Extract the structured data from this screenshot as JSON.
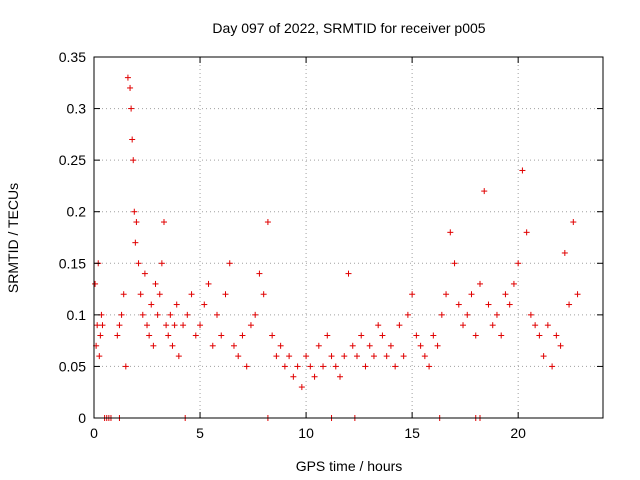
{
  "chart_data": {
    "type": "scatter",
    "title": "Day 097 of 2022, SRMTID for receiver p005",
    "xlabel": "GPS time / hours",
    "ylabel": "SRMTID / TECUs",
    "xlim": [
      0,
      24
    ],
    "ylim": [
      0,
      0.35
    ],
    "x_ticks": [
      0,
      5,
      10,
      15,
      20
    ],
    "x_tick_labels": [
      "0",
      "5",
      "10",
      "15",
      "20"
    ],
    "y_ticks": [
      0,
      0.05,
      0.1,
      0.15,
      0.2,
      0.25,
      0.3,
      0.35
    ],
    "y_tick_labels": [
      "0",
      "0.05",
      "0.1",
      "0.15",
      "0.2",
      "0.25",
      "0.3",
      "0.35"
    ],
    "grid": true,
    "marker": "plus",
    "color": "#e00000",
    "series": [
      {
        "name": "p005",
        "x": [
          0.05,
          0.1,
          0.15,
          0.2,
          0.25,
          0.3,
          0.35,
          0.4,
          1.1,
          1.2,
          1.3,
          1.4,
          1.5,
          1.6,
          1.7,
          1.75,
          1.8,
          1.85,
          1.9,
          1.95,
          2.0,
          2.1,
          2.2,
          2.3,
          2.4,
          2.5,
          2.6,
          2.7,
          2.8,
          2.9,
          3.0,
          3.1,
          3.2,
          3.3,
          3.4,
          3.5,
          3.6,
          3.7,
          3.8,
          3.9,
          4.0,
          4.2,
          4.4,
          4.6,
          4.8,
          5.0,
          5.2,
          5.4,
          5.6,
          5.8,
          6.0,
          6.2,
          6.4,
          6.6,
          6.8,
          7.0,
          7.2,
          7.4,
          7.6,
          7.8,
          8.0,
          8.2,
          8.4,
          8.6,
          8.8,
          9.0,
          9.2,
          9.4,
          9.6,
          9.8,
          10.0,
          10.2,
          10.4,
          10.6,
          10.8,
          11.0,
          11.2,
          11.4,
          11.6,
          11.8,
          12.0,
          12.2,
          12.4,
          12.6,
          12.8,
          13.0,
          13.2,
          13.4,
          13.6,
          13.8,
          14.0,
          14.2,
          14.4,
          14.6,
          14.8,
          15.0,
          15.2,
          15.4,
          15.6,
          15.8,
          16.0,
          16.2,
          16.4,
          16.6,
          16.8,
          17.0,
          17.2,
          17.4,
          17.6,
          17.8,
          18.0,
          18.2,
          18.4,
          18.6,
          18.8,
          19.0,
          19.2,
          19.4,
          19.6,
          19.8,
          20.0,
          20.2,
          20.4,
          20.6,
          20.8,
          21.0,
          21.2,
          21.4,
          21.6,
          21.8,
          22.0,
          22.2,
          22.4,
          22.6,
          22.8
        ],
        "y": [
          0.13,
          0.07,
          0.09,
          0.15,
          0.06,
          0.08,
          0.1,
          0.09,
          0.08,
          0.09,
          0.1,
          0.12,
          0.05,
          0.33,
          0.32,
          0.3,
          0.27,
          0.25,
          0.2,
          0.17,
          0.19,
          0.15,
          0.12,
          0.1,
          0.14,
          0.09,
          0.08,
          0.11,
          0.07,
          0.13,
          0.1,
          0.12,
          0.15,
          0.19,
          0.09,
          0.08,
          0.1,
          0.07,
          0.09,
          0.11,
          0.06,
          0.09,
          0.1,
          0.12,
          0.08,
          0.09,
          0.11,
          0.13,
          0.07,
          0.1,
          0.08,
          0.12,
          0.15,
          0.07,
          0.06,
          0.08,
          0.05,
          0.09,
          0.1,
          0.14,
          0.12,
          0.19,
          0.08,
          0.06,
          0.07,
          0.05,
          0.06,
          0.04,
          0.05,
          0.03,
          0.06,
          0.05,
          0.04,
          0.07,
          0.05,
          0.08,
          0.06,
          0.05,
          0.04,
          0.06,
          0.14,
          0.07,
          0.06,
          0.08,
          0.05,
          0.07,
          0.06,
          0.09,
          0.08,
          0.06,
          0.07,
          0.05,
          0.09,
          0.06,
          0.1,
          0.12,
          0.08,
          0.07,
          0.06,
          0.05,
          0.08,
          0.07,
          0.1,
          0.12,
          0.18,
          0.15,
          0.11,
          0.09,
          0.1,
          0.12,
          0.08,
          0.13,
          0.22,
          0.11,
          0.09,
          0.1,
          0.08,
          0.12,
          0.11,
          0.13,
          0.15,
          0.24,
          0.18,
          0.1,
          0.09,
          0.08,
          0.06,
          0.09,
          0.05,
          0.08,
          0.07,
          0.16,
          0.11,
          0.19,
          0.12
        ],
        "near_zero_x": [
          0.5,
          0.6,
          0.7,
          0.8,
          1.2,
          4.3,
          8.2,
          11.2,
          12.3,
          16.3,
          18.0,
          18.2
        ]
      }
    ]
  }
}
